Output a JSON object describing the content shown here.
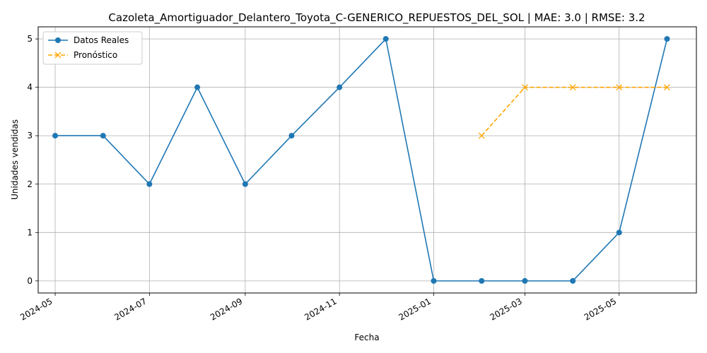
{
  "chart_data": {
    "type": "line",
    "title": "Cazoleta_Amortiguador_Delantero_Toyota_C-GENERICO_REPUESTOS_DEL_SOL | MAE: 3.0 | RMSE: 3.2",
    "xlabel": "Fecha",
    "ylabel": "Unidades vendidas",
    "ylim": [
      -0.25,
      5.25
    ],
    "xlim": [
      "2024-04-20",
      "2025-06-20"
    ],
    "grid": true,
    "legend_position": "top-left",
    "x_ticks": [
      "2024-05",
      "2024-07",
      "2024-09",
      "2024-11",
      "2025-01",
      "2025-03",
      "2025-05"
    ],
    "y_ticks": [
      0,
      1,
      2,
      3,
      4,
      5
    ],
    "series": [
      {
        "name": "Datos Reales",
        "color": "#1f77b4",
        "style": "solid",
        "marker": "circle",
        "x": [
          "2024-05-01",
          "2024-06-01",
          "2024-07-01",
          "2024-08-01",
          "2024-09-01",
          "2024-10-01",
          "2024-11-01",
          "2024-12-01",
          "2025-01-01",
          "2025-02-01",
          "2025-03-01",
          "2025-04-01",
          "2025-05-01",
          "2025-06-01"
        ],
        "values": [
          3,
          3,
          2,
          4,
          2,
          3,
          4,
          5,
          0,
          0,
          0,
          0,
          1,
          5
        ]
      },
      {
        "name": "Pronóstico",
        "color": "#ffa500",
        "style": "dashed",
        "marker": "x",
        "x": [
          "2025-02-01",
          "2025-03-01",
          "2025-04-01",
          "2025-05-01",
          "2025-06-01"
        ],
        "values": [
          3,
          4,
          4,
          4,
          4
        ]
      }
    ]
  }
}
